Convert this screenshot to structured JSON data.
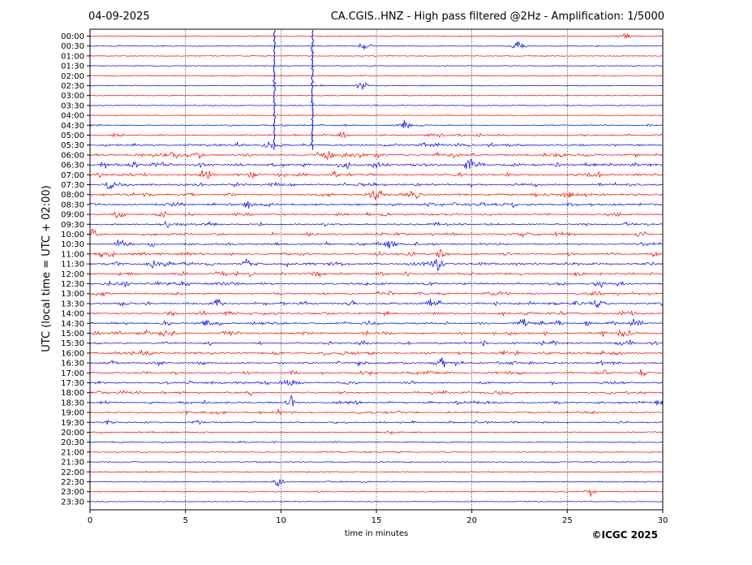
{
  "header": {
    "date": "04-09-2025",
    "title": "CA.CGIS..HNZ - High pass filtered @2Hz - Amplification: 1/5000"
  },
  "copyright": "©ICGC 2025",
  "colors": {
    "trace_a": "#ff0000",
    "trace_b": "#0000ff",
    "grid": "#000000",
    "frame": "#000000"
  },
  "chart_data": {
    "type": "line",
    "title": "CA.CGIS..HNZ - High pass filtered @2Hz - Amplification: 1/5000",
    "xlabel": "time in minutes",
    "ylabel": "UTC (local time = UTC + 02:00)",
    "xlim": [
      0,
      30
    ],
    "x_ticks": [
      "0",
      "5",
      "10",
      "15",
      "20",
      "25",
      "30"
    ],
    "grid": "vertical dotted lines every 5 minutes",
    "rows": [
      "00:00",
      "00:30",
      "01:00",
      "01:30",
      "02:00",
      "02:30",
      "03:00",
      "03:30",
      "04:00",
      "04:30",
      "05:00",
      "05:30",
      "06:00",
      "06:30",
      "07:00",
      "07:30",
      "08:00",
      "08:30",
      "09:00",
      "09:30",
      "10:00",
      "10:30",
      "11:00",
      "11:30",
      "12:00",
      "12:30",
      "13:00",
      "13:30",
      "14:00",
      "14:30",
      "15:00",
      "15:30",
      "16:00",
      "16:30",
      "17:00",
      "17:30",
      "18:00",
      "18:30",
      "19:00",
      "19:30",
      "20:00",
      "20:30",
      "21:00",
      "21:30",
      "22:00",
      "22:30",
      "23:00",
      "23:30"
    ],
    "row_colors": "alternating red (even rows) and blue (odd rows)",
    "activity": [
      0.1,
      0.15,
      0.08,
      0.1,
      0.1,
      0.12,
      0.06,
      0.06,
      0.08,
      0.25,
      0.45,
      0.6,
      0.75,
      0.8,
      0.7,
      0.65,
      0.7,
      0.7,
      0.55,
      0.55,
      0.6,
      0.6,
      0.65,
      0.7,
      0.65,
      0.65,
      0.6,
      0.65,
      0.65,
      0.7,
      0.7,
      0.65,
      0.65,
      0.65,
      0.6,
      0.55,
      0.55,
      0.6,
      0.5,
      0.45,
      0.25,
      0.2,
      0.2,
      0.2,
      0.15,
      0.2,
      0.15,
      0.1
    ],
    "notable_events": [
      {
        "row": "00:00",
        "minute": 28.0,
        "strength": 0.5
      },
      {
        "row": "00:30",
        "minute": 14.4,
        "strength": 1.0
      },
      {
        "row": "00:30",
        "minute": 22.5,
        "strength": 0.9
      },
      {
        "row": "02:30",
        "minute": 14.2,
        "strength": 0.9
      },
      {
        "row": "04:30",
        "minute": 16.5,
        "strength": 0.9
      },
      {
        "row": "05:00",
        "minute": 13.3,
        "strength": 0.6
      },
      {
        "row": "05:30",
        "minute": 9.3,
        "strength": 0.7
      },
      {
        "row": "06:00",
        "minute": 12.5,
        "strength": 0.8
      },
      {
        "row": "06:30",
        "minute": 2.3,
        "strength": 0.9
      },
      {
        "row": "06:30",
        "minute": 19.9,
        "strength": 1.0
      },
      {
        "row": "07:00",
        "minute": 6.1,
        "strength": 1.0
      },
      {
        "row": "07:30",
        "minute": 1.1,
        "strength": 0.9
      },
      {
        "row": "08:00",
        "minute": 15.1,
        "strength": 0.9
      },
      {
        "row": "08:00",
        "minute": 17.0,
        "strength": 0.9
      },
      {
        "row": "08:30",
        "minute": 8.3,
        "strength": 0.8
      },
      {
        "row": "09:00",
        "minute": 1.5,
        "strength": 0.8
      },
      {
        "row": "10:00",
        "minute": 0.1,
        "strength": 0.8
      },
      {
        "row": "10:30",
        "minute": 1.6,
        "strength": 0.8
      },
      {
        "row": "11:30",
        "minute": 3.3,
        "strength": 0.8
      },
      {
        "row": "11:30",
        "minute": 8.2,
        "strength": 0.9
      },
      {
        "row": "11:30",
        "minute": 18.2,
        "strength": 0.9
      },
      {
        "row": "12:30",
        "minute": 26.6,
        "strength": 0.8
      },
      {
        "row": "13:30",
        "minute": 6.6,
        "strength": 0.9
      },
      {
        "row": "13:30",
        "minute": 26.6,
        "strength": 0.8
      },
      {
        "row": "14:00",
        "minute": 28.2,
        "strength": 0.9
      },
      {
        "row": "14:30",
        "minute": 28.6,
        "strength": 1.0
      },
      {
        "row": "15:00",
        "minute": 3.9,
        "strength": 0.8
      },
      {
        "row": "15:00",
        "minute": 27.8,
        "strength": 0.9
      },
      {
        "row": "16:30",
        "minute": 18.5,
        "strength": 0.8
      },
      {
        "row": "17:00",
        "minute": 29.0,
        "strength": 0.8
      },
      {
        "row": "17:30",
        "minute": 10.5,
        "strength": 0.8
      },
      {
        "row": "18:30",
        "minute": 10.5,
        "strength": 0.7
      },
      {
        "row": "18:30",
        "minute": 29.9,
        "strength": 0.7
      },
      {
        "row": "22:30",
        "minute": 9.9,
        "strength": 0.9
      },
      {
        "row": "23:00",
        "minute": 26.2,
        "strength": 0.6
      }
    ],
    "long_transients": [
      {
        "start_row": "00:00",
        "end_row": "05:30",
        "minute": 9.65,
        "strength": 1.0
      },
      {
        "start_row": "00:00",
        "end_row": "05:30",
        "minute": 11.65,
        "strength": 1.0
      }
    ]
  }
}
